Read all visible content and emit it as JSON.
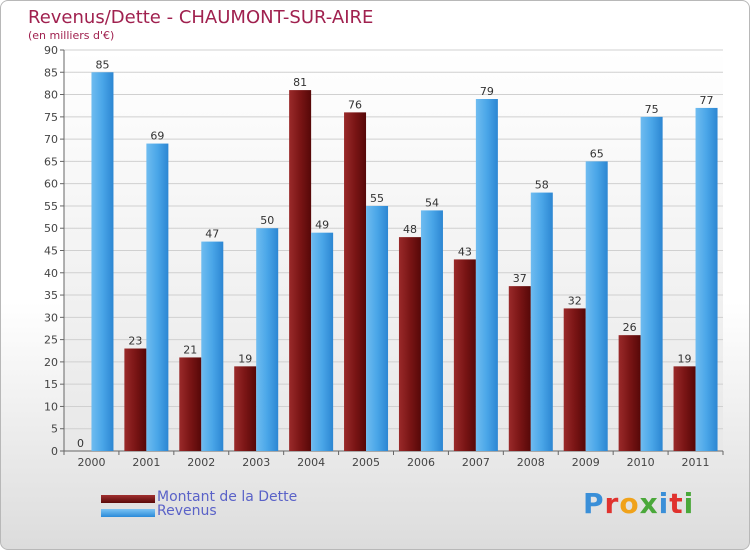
{
  "title": "Revenus/Dette - CHAUMONT-SUR-AIRE",
  "subtitle": "(en milliers d'€)",
  "legend": [
    {
      "label": "Montant de la Dette",
      "color": "#7a1515"
    },
    {
      "label": "Revenus",
      "color": "#4aa6e8"
    }
  ],
  "logo_text": "Proxiti",
  "colors": {
    "title": "#a0214f",
    "legend_text": "#5a62c8",
    "dette": "#7a1515",
    "revenus": "#4aa6e8"
  },
  "chart_data": {
    "type": "bar",
    "categories": [
      "2000",
      "2001",
      "2002",
      "2003",
      "2004",
      "2005",
      "2006",
      "2007",
      "2008",
      "2009",
      "2010",
      "2011"
    ],
    "series": [
      {
        "name": "Montant de la Dette",
        "values": [
          0,
          23,
          21,
          19,
          81,
          76,
          48,
          43,
          37,
          32,
          26,
          19
        ]
      },
      {
        "name": "Revenus",
        "values": [
          85,
          69,
          47,
          50,
          49,
          55,
          54,
          79,
          58,
          65,
          75,
          77
        ]
      }
    ],
    "yticks": [
      0,
      5,
      10,
      15,
      20,
      25,
      30,
      35,
      40,
      45,
      50,
      55,
      60,
      65,
      70,
      75,
      80,
      85,
      90
    ],
    "ylim": [
      0,
      90
    ],
    "grid": true,
    "legend_position": "bottom-left",
    "data_labels": true
  }
}
